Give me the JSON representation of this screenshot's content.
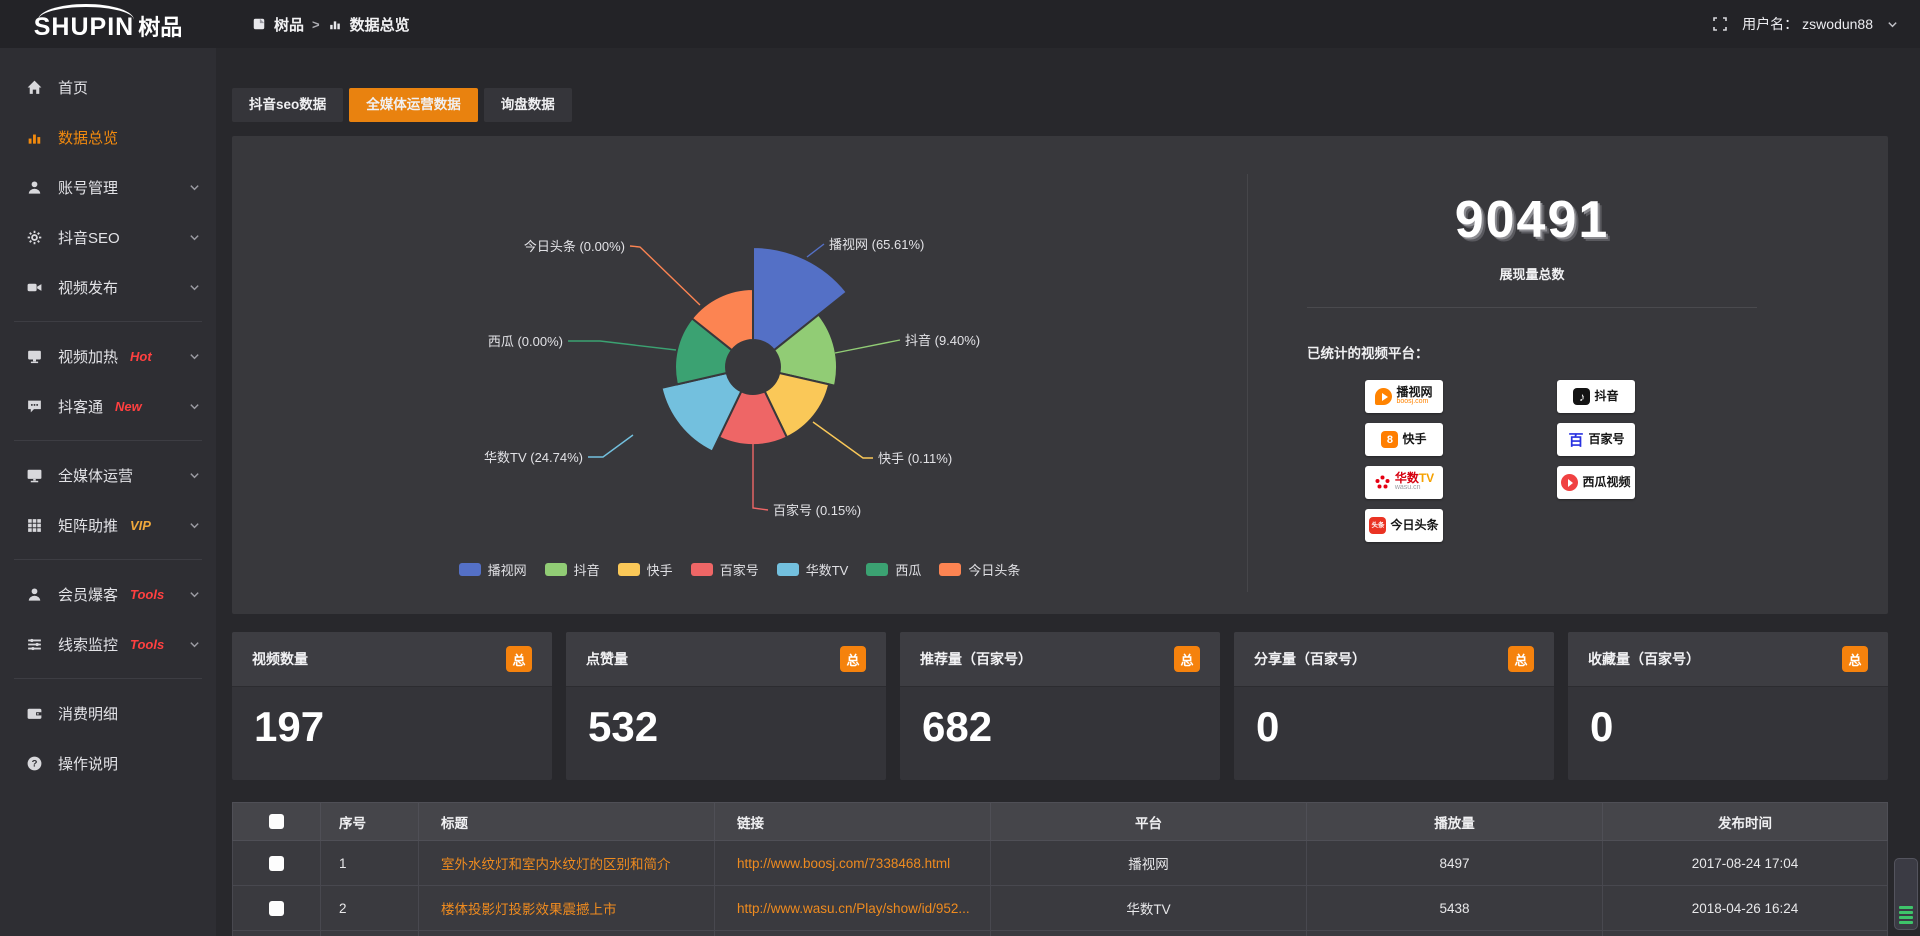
{
  "header": {
    "brand": {
      "en": "SHUPIN",
      "cn": "树品"
    },
    "breadcrumb": {
      "root": "树品",
      "separator": ">",
      "current": "数据总览"
    },
    "user": {
      "label": "用户名：",
      "name": "zswodun88"
    }
  },
  "sidebar": {
    "items": [
      {
        "label": "首页",
        "icon": "home-icon",
        "key": "home"
      },
      {
        "label": "数据总览",
        "icon": "data-overview-icon",
        "key": "chart",
        "active": true
      },
      {
        "label": "账号管理",
        "icon": "account-icon",
        "key": "user",
        "expandable": true
      },
      {
        "label": "抖音SEO",
        "icon": "gear-icon",
        "key": "gear",
        "expandable": true
      },
      {
        "label": "视频发布",
        "icon": "video-publish-icon",
        "key": "publish",
        "expandable": true,
        "divider_after": true
      },
      {
        "label": "视频加热",
        "icon": "video-heat-icon",
        "key": "heat",
        "expandable": true,
        "badge": {
          "text": "Hot",
          "color": "red"
        }
      },
      {
        "label": "抖客通",
        "icon": "chat-icon",
        "key": "chat",
        "expandable": true,
        "badge": {
          "text": "New",
          "color": "red"
        },
        "divider_after": true
      },
      {
        "label": "全媒体运营",
        "icon": "media-icon",
        "key": "media",
        "expandable": true
      },
      {
        "label": "矩阵助推",
        "icon": "matrix-icon",
        "key": "matrix",
        "expandable": true,
        "badge": {
          "text": "VIP",
          "color": "orange"
        },
        "divider_after": true
      },
      {
        "label": "会员爆客",
        "icon": "member-icon",
        "key": "user",
        "expandable": true,
        "badge": {
          "text": "Tools",
          "color": "red"
        }
      },
      {
        "label": "线索监控",
        "icon": "leads-icon",
        "key": "leads",
        "expandable": true,
        "badge": {
          "text": "Tools",
          "color": "red"
        },
        "divider_after": true
      },
      {
        "label": "消费明细",
        "icon": "wallet-icon",
        "key": "wallet"
      },
      {
        "label": "操作说明",
        "icon": "help-icon",
        "key": "help"
      }
    ]
  },
  "tabs": [
    {
      "label": "抖音seo数据",
      "active": false
    },
    {
      "label": "全媒体运营数据",
      "active": true
    },
    {
      "label": "询盘数据",
      "active": false
    }
  ],
  "chart_data": {
    "type": "pie",
    "subtype": "nightingale-rose",
    "title": "",
    "legend_position": "bottom",
    "series": [
      {
        "name": "播视网",
        "value": 65.61,
        "display_pct": "65.61%",
        "color": "#5470c6"
      },
      {
        "name": "抖音",
        "value": 9.4,
        "display_pct": "9.40%",
        "color": "#91cc75"
      },
      {
        "name": "快手",
        "value": 0.11,
        "display_pct": "0.11%",
        "color": "#fac858"
      },
      {
        "name": "百家号",
        "value": 0.15,
        "display_pct": "0.15%",
        "color": "#ee6666"
      },
      {
        "name": "华数TV",
        "value": 24.74,
        "display_pct": "24.74%",
        "color": "#73c0de"
      },
      {
        "name": "西瓜",
        "value": 0.0,
        "display_pct": "0.00%",
        "color": "#3ba272"
      },
      {
        "name": "今日头条",
        "value": 0.0,
        "display_pct": "0.00%",
        "color": "#fc8452"
      }
    ]
  },
  "summary": {
    "total_value": "90491",
    "total_label": "展现量总数",
    "platforms_title": "已统计的视频平台：",
    "platforms_left": [
      {
        "name": "播视网",
        "sub": "boosj.com",
        "icon": "boosj-logo"
      },
      {
        "name": "快手",
        "sub": "",
        "icon": "kuaishou-logo"
      },
      {
        "name": "华数TV",
        "sub": "wasu.cn",
        "icon": "wasu-logo"
      },
      {
        "name": "今日头条",
        "sub": "",
        "icon": "toutiao-logo"
      }
    ],
    "platforms_right": [
      {
        "name": "抖音",
        "sub": "",
        "icon": "douyin-logo"
      },
      {
        "name": "百家号",
        "sub": "",
        "icon": "baijiahao-logo"
      },
      {
        "name": "西瓜视频",
        "sub": "",
        "icon": "xigua-logo"
      }
    ]
  },
  "stat_cards": [
    {
      "title": "视频数量",
      "badge": "总",
      "value": "197"
    },
    {
      "title": "点赞量",
      "badge": "总",
      "value": "532"
    },
    {
      "title": "推荐量（百家号）",
      "badge": "总",
      "value": "682"
    },
    {
      "title": "分享量（百家号）",
      "badge": "总",
      "value": "0"
    },
    {
      "title": "收藏量（百家号）",
      "badge": "总",
      "value": "0"
    }
  ],
  "table": {
    "columns": [
      "",
      "序号",
      "标题",
      "链接",
      "平台",
      "播放量",
      "发布时间"
    ],
    "rows": [
      {
        "no": "1",
        "title": "室外水纹灯和室内水纹灯的区别和简介",
        "link": "http://www.boosj.com/7338468.html",
        "platform": "播视网",
        "plays": "8497",
        "time": "2017-08-24 17:04"
      },
      {
        "no": "2",
        "title": "楼体投影灯投影效果震撼上市",
        "link": "http://www.wasu.cn/Play/show/id/952...",
        "platform": "华数TV",
        "plays": "5438",
        "time": "2018-04-26 16:24"
      }
    ]
  }
}
